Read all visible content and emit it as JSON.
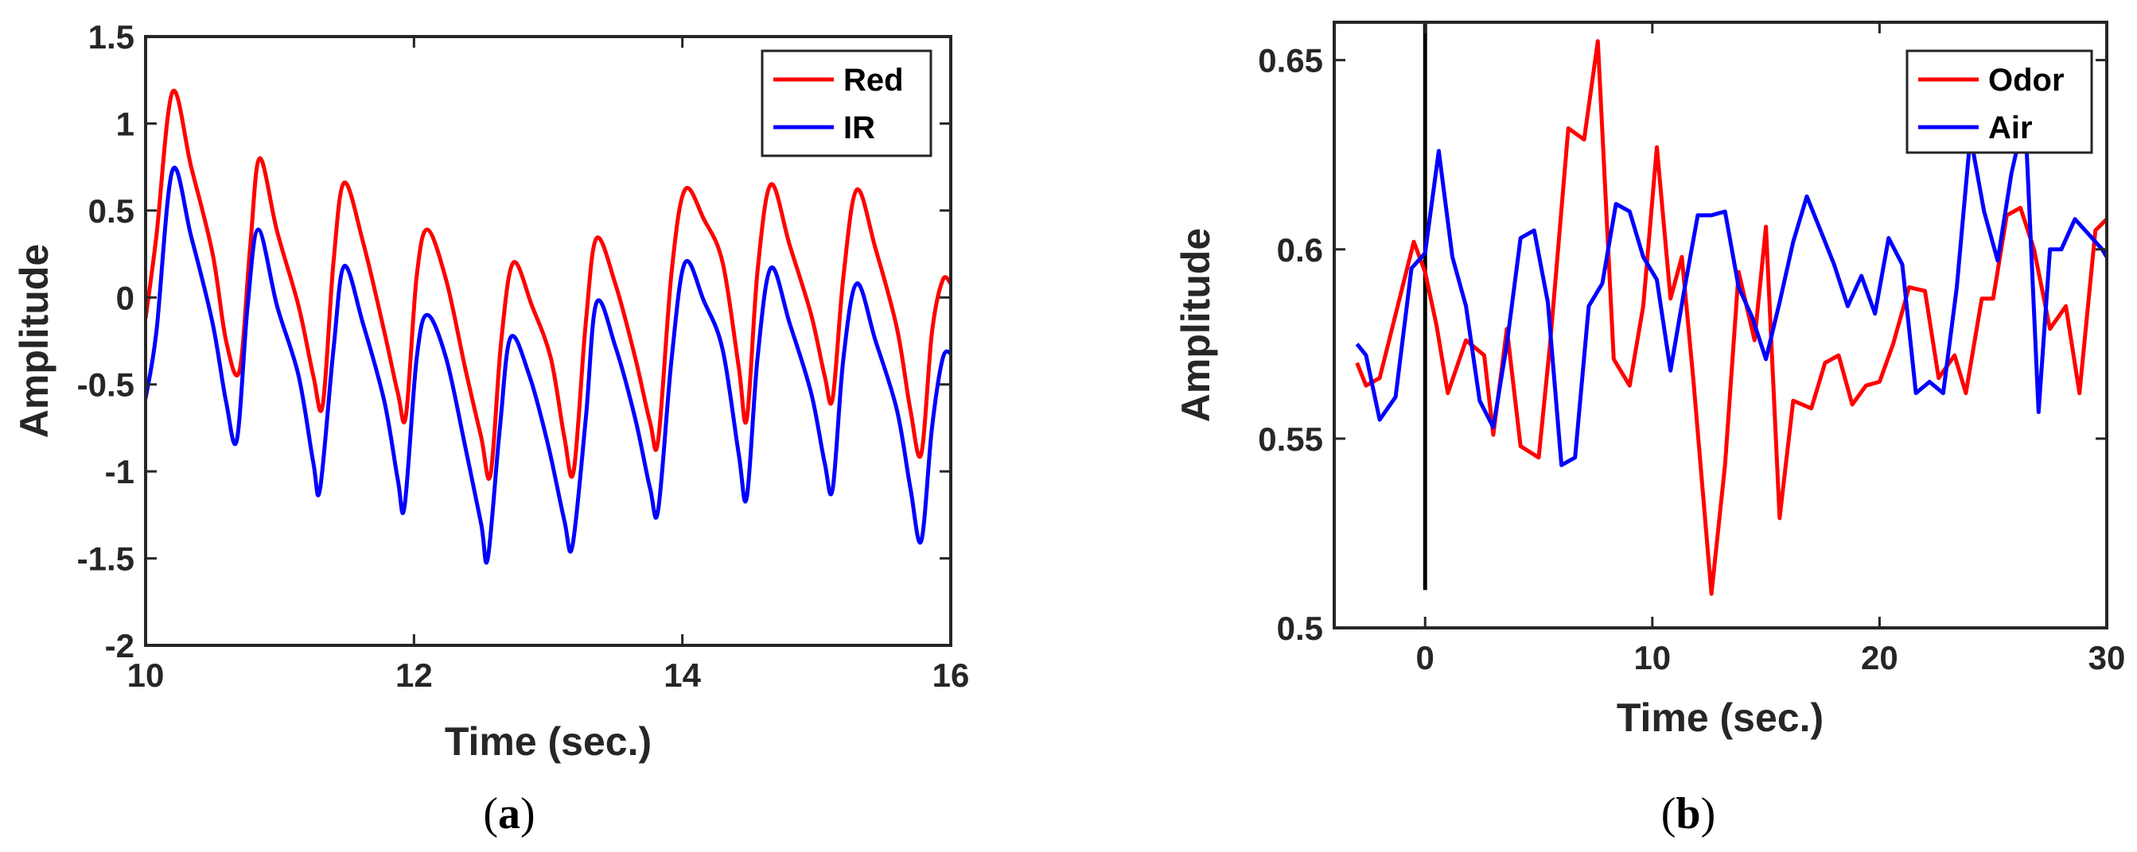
{
  "chart_data": [
    {
      "type": "line",
      "panel": "(a)",
      "panel_open": "(",
      "panel_letter": "a",
      "panel_close": ")",
      "xlabel": "Time (sec.)",
      "ylabel": "Amplitude",
      "xlim": [
        10,
        16
      ],
      "ylim": [
        -2,
        1.5
      ],
      "xticks": [
        10,
        12,
        14,
        16
      ],
      "yticks": [
        -2,
        -1.5,
        -1,
        -0.5,
        0,
        0.5,
        1,
        1.5
      ],
      "ytick_labels": [
        "-2",
        "-1.5",
        "-1",
        "-0.5",
        "0",
        "0.5",
        "1",
        "1.5"
      ],
      "xtick_labels": [
        "10",
        "12",
        "14",
        "16"
      ],
      "legend": {
        "position": "top-right",
        "entries": [
          "Red",
          "IR"
        ]
      },
      "series": [
        {
          "name": "Red",
          "color": "#ff0000",
          "x": [
            10.0,
            10.08,
            10.2,
            10.34,
            10.5,
            10.6,
            10.7,
            10.78,
            10.85,
            10.98,
            11.14,
            11.25,
            11.32,
            11.4,
            11.48,
            11.62,
            11.78,
            11.88,
            11.94,
            12.02,
            12.1,
            12.24,
            12.38,
            12.5,
            12.57,
            12.65,
            12.74,
            12.88,
            13.02,
            13.12,
            13.19,
            13.28,
            13.36,
            13.5,
            13.65,
            13.76,
            13.82,
            13.92,
            14.02,
            14.16,
            14.3,
            14.42,
            14.48,
            14.56,
            14.66,
            14.8,
            14.96,
            15.06,
            15.12,
            15.2,
            15.3,
            15.44,
            15.6,
            15.7,
            15.78,
            15.86,
            15.94,
            16.0
          ],
          "values": [
            -0.12,
            0.35,
            1.18,
            0.75,
            0.25,
            -0.25,
            -0.42,
            0.3,
            0.8,
            0.38,
            -0.05,
            -0.45,
            -0.62,
            0.2,
            0.66,
            0.32,
            -0.2,
            -0.55,
            -0.68,
            0.12,
            0.39,
            0.1,
            -0.4,
            -0.8,
            -1.02,
            -0.25,
            0.2,
            -0.05,
            -0.35,
            -0.8,
            -1.0,
            -0.15,
            0.34,
            0.08,
            -0.35,
            -0.72,
            -0.82,
            0.15,
            0.62,
            0.45,
            0.2,
            -0.4,
            -0.7,
            0.15,
            0.65,
            0.3,
            -0.1,
            -0.45,
            -0.58,
            0.12,
            0.62,
            0.28,
            -0.18,
            -0.65,
            -0.9,
            -0.2,
            0.1,
            0.08
          ]
        },
        {
          "name": "IR",
          "color": "#0000ff",
          "x": [
            10.0,
            10.08,
            10.2,
            10.34,
            10.5,
            10.6,
            10.68,
            10.76,
            10.84,
            10.98,
            11.14,
            11.25,
            11.3,
            11.4,
            11.48,
            11.62,
            11.78,
            11.88,
            11.93,
            12.02,
            12.1,
            12.24,
            12.38,
            12.5,
            12.55,
            12.64,
            12.72,
            12.86,
            13.0,
            13.12,
            13.18,
            13.28,
            13.36,
            13.5,
            13.65,
            13.76,
            13.82,
            13.92,
            14.02,
            14.16,
            14.3,
            14.42,
            14.48,
            14.56,
            14.66,
            14.8,
            14.96,
            15.06,
            15.12,
            15.2,
            15.3,
            15.44,
            15.6,
            15.7,
            15.78,
            15.86,
            15.94,
            16.0
          ],
          "values": [
            -0.58,
            -0.2,
            0.73,
            0.35,
            -0.15,
            -0.6,
            -0.82,
            -0.05,
            0.39,
            -0.05,
            -0.45,
            -0.95,
            -1.1,
            -0.3,
            0.18,
            -0.15,
            -0.6,
            -1.05,
            -1.2,
            -0.35,
            -0.1,
            -0.35,
            -0.85,
            -1.3,
            -1.5,
            -0.75,
            -0.23,
            -0.45,
            -0.85,
            -1.28,
            -1.43,
            -0.7,
            -0.03,
            -0.28,
            -0.7,
            -1.1,
            -1.22,
            -0.35,
            0.2,
            -0.02,
            -0.3,
            -0.9,
            -1.15,
            -0.35,
            0.17,
            -0.15,
            -0.55,
            -0.95,
            -1.1,
            -0.35,
            0.08,
            -0.25,
            -0.65,
            -1.1,
            -1.4,
            -0.75,
            -0.35,
            -0.32
          ]
        }
      ]
    },
    {
      "type": "line",
      "panel": "(b)",
      "panel_open": "(",
      "panel_letter": "b",
      "panel_close": ")",
      "xlabel": "Time (sec.)",
      "ylabel": "Amplitude",
      "xlim": [
        -4,
        30
      ],
      "ylim": [
        0.5,
        0.66
      ],
      "xticks": [
        0,
        10,
        20,
        30
      ],
      "yticks": [
        0.5,
        0.55,
        0.6,
        0.65
      ],
      "ytick_labels": [
        "0.5",
        "0.55",
        "0.6",
        "0.65"
      ],
      "xtick_labels": [
        "0",
        "10",
        "20",
        "30"
      ],
      "annotations": [
        {
          "type": "vline",
          "x": 0,
          "y_from": 0.51,
          "y_to": 0.66,
          "color": "#000000"
        }
      ],
      "legend": {
        "position": "top-right",
        "entries": [
          "Odor",
          "Air"
        ]
      },
      "series": [
        {
          "name": "Odor",
          "color": "#ff0000",
          "x": [
            -3.0,
            -2.6,
            -2.0,
            -1.0,
            -0.5,
            0.0,
            0.5,
            1.0,
            1.8,
            2.6,
            3.0,
            3.6,
            4.2,
            5.0,
            5.5,
            6.3,
            7.0,
            7.6,
            8.3,
            9.0,
            9.6,
            10.2,
            10.8,
            11.3,
            11.8,
            12.6,
            13.2,
            13.8,
            14.5,
            15.0,
            15.6,
            16.2,
            17.0,
            17.6,
            18.2,
            18.8,
            19.4,
            20.0,
            20.6,
            21.3,
            22.0,
            22.6,
            23.3,
            23.8,
            24.5,
            25.0,
            25.6,
            26.2,
            26.8,
            27.5,
            28.2,
            28.8,
            29.5,
            30.0
          ],
          "values": [
            0.57,
            0.564,
            0.566,
            0.59,
            0.602,
            0.594,
            0.58,
            0.562,
            0.576,
            0.572,
            0.551,
            0.579,
            0.548,
            0.545,
            0.575,
            0.632,
            0.629,
            0.655,
            0.571,
            0.564,
            0.585,
            0.627,
            0.587,
            0.598,
            0.566,
            0.509,
            0.543,
            0.594,
            0.576,
            0.606,
            0.529,
            0.56,
            0.558,
            0.57,
            0.572,
            0.559,
            0.564,
            0.565,
            0.575,
            0.59,
            0.589,
            0.566,
            0.572,
            0.562,
            0.587,
            0.587,
            0.609,
            0.611,
            0.6,
            0.579,
            0.585,
            0.562,
            0.605,
            0.608
          ]
        },
        {
          "name": "Air",
          "color": "#0000ff",
          "x": [
            -3.0,
            -2.6,
            -2.0,
            -1.3,
            -0.6,
            0.0,
            0.6,
            1.2,
            1.8,
            2.4,
            3.0,
            3.6,
            4.2,
            4.8,
            5.4,
            6.0,
            6.6,
            7.2,
            7.8,
            8.4,
            9.0,
            9.6,
            10.2,
            10.8,
            11.4,
            12.0,
            12.6,
            13.2,
            13.8,
            14.4,
            15.0,
            15.6,
            16.2,
            16.8,
            17.4,
            18.0,
            18.6,
            19.2,
            19.8,
            20.4,
            21.0,
            21.6,
            22.2,
            22.8,
            23.4,
            24.0,
            24.6,
            25.2,
            25.8,
            26.4,
            27.0,
            27.5,
            28.0,
            28.6,
            29.2,
            29.8,
            30.0
          ],
          "values": [
            0.575,
            0.572,
            0.555,
            0.561,
            0.595,
            0.599,
            0.626,
            0.598,
            0.585,
            0.56,
            0.553,
            0.575,
            0.603,
            0.605,
            0.586,
            0.543,
            0.545,
            0.585,
            0.591,
            0.612,
            0.61,
            0.598,
            0.592,
            0.568,
            0.589,
            0.609,
            0.609,
            0.61,
            0.59,
            0.582,
            0.571,
            0.586,
            0.602,
            0.614,
            0.605,
            0.596,
            0.585,
            0.593,
            0.583,
            0.603,
            0.596,
            0.562,
            0.565,
            0.562,
            0.59,
            0.63,
            0.61,
            0.597,
            0.62,
            0.636,
            0.557,
            0.6,
            0.6,
            0.608,
            0.604,
            0.6,
            0.598
          ]
        }
      ]
    }
  ]
}
